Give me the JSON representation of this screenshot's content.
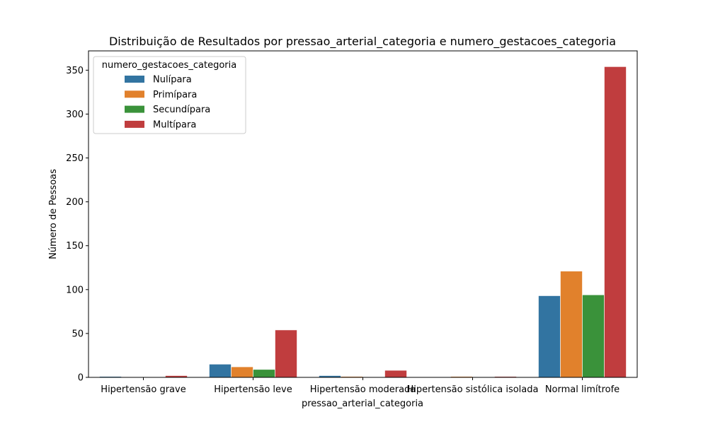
{
  "chart_data": {
    "type": "bar",
    "title": "Distribuição de Resultados por pressao_arterial_categoria e numero_gestacoes_categoria",
    "xlabel": "pressao_arterial_categoria",
    "ylabel": "Número de Pessoas",
    "ylim": [
      0,
      372
    ],
    "yticks": [
      0,
      50,
      100,
      150,
      200,
      250,
      300,
      350
    ],
    "categories": [
      "Hipertensão grave",
      "Hipertensão leve",
      "Hipertensão moderada",
      "Hipertensão sistólica isolada",
      "Normal limítrofe"
    ],
    "legend": {
      "title": "numero_gestacoes_categoria",
      "placement": "top-left"
    },
    "grid": false,
    "series": [
      {
        "name": "Nulípara",
        "color": "#3274a1",
        "values": [
          1,
          15,
          2,
          0,
          93
        ]
      },
      {
        "name": "Primípara",
        "color": "#e1812c",
        "values": [
          0,
          12,
          1,
          1,
          121
        ]
      },
      {
        "name": "Secundípara",
        "color": "#3a923a",
        "values": [
          0,
          9,
          0,
          0,
          94
        ]
      },
      {
        "name": "Multípara",
        "color": "#c03d3e",
        "values": [
          2,
          54,
          8,
          1,
          354
        ]
      }
    ]
  }
}
